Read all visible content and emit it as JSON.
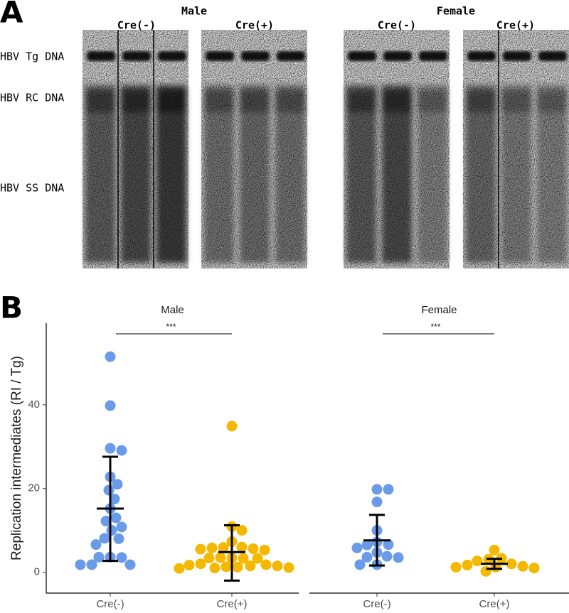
{
  "panel_a": {
    "label": "A",
    "groups": [
      {
        "sex": "Male",
        "conditions": [
          "Cre(-)",
          "Cre(+)"
        ]
      },
      {
        "sex": "Female",
        "conditions": [
          "Cre(-)",
          "Cre(+)"
        ]
      }
    ],
    "bands": [
      "HBV Tg DNA",
      "HBV RC DNA",
      "HBV SS DNA"
    ]
  },
  "chart_data": {
    "type": "dot",
    "panel_label": "B",
    "y_label": "Replication intermediates (RI / Tg)",
    "ylim": [
      -5,
      59.5
    ],
    "yticks": [
      0,
      20,
      40
    ],
    "facets": [
      {
        "name": "Male",
        "significance": "***",
        "groups": [
          {
            "name": "Cre(-)",
            "color": "#6a9be8",
            "values": [
              51.5,
              39.8,
              29.6,
              29.1,
              22.8,
              21,
              19.6,
              17.5,
              15.2,
              13,
              12.2,
              10.8,
              10,
              8.1,
              8,
              6.6,
              3.6,
              3.5,
              3.6,
              1.8,
              1.8,
              1.8
            ],
            "mean": 15.2,
            "lower": 2.7,
            "upper": 27.6
          },
          {
            "name": "Cre(+)",
            "color": "#f5b800",
            "values": [
              34.9,
              10.9,
              10,
              7.3,
              6,
              5.9,
              5.8,
              5.6,
              5.5,
              5.3,
              3.4,
              3.3,
              3.5,
              3.4,
              3.3,
              2,
              1.8,
              1.7,
              1.5,
              1.5,
              1.2,
              1.3,
              1,
              0.9,
              1.1
            ],
            "mean": 4.8,
            "lower": -2,
            "upper": 11.2
          }
        ]
      },
      {
        "name": "Female",
        "significance": "***",
        "groups": [
          {
            "name": "Cre(-)",
            "color": "#6a9be8",
            "values": [
              19.8,
              19.8,
              16.8,
              10,
              7.2,
              6.6,
              6.5,
              5.8,
              4.7,
              3.8,
              3.6,
              3.5,
              1.8,
              1.8
            ],
            "mean": 7.6,
            "lower": 1.6,
            "upper": 13.7
          },
          {
            "name": "Cre(+)",
            "color": "#f5b800",
            "values": [
              5.3,
              3.3,
              3.1,
              2.7,
              2,
              1.7,
              1.4,
              1.2,
              1.2,
              1,
              0.2
            ],
            "mean": 2,
            "lower": 0.8,
            "upper": 3.2
          }
        ]
      }
    ]
  }
}
